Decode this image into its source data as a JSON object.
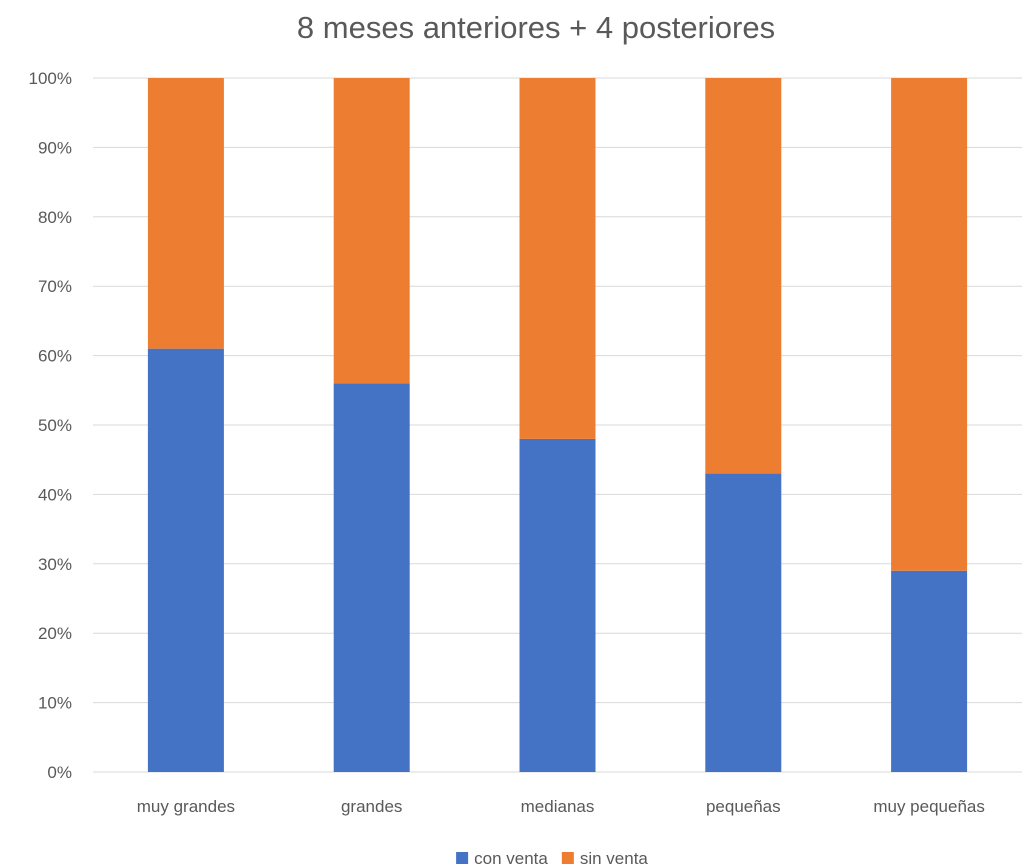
{
  "chart_data": {
    "type": "bar",
    "stacked": true,
    "title": "8 meses anteriores + 4 posteriores",
    "xlabel": "",
    "ylabel": "",
    "categories": [
      "muy grandes",
      "grandes",
      "medianas",
      "pequeñas",
      "muy pequeñas"
    ],
    "series": [
      {
        "name": "con venta",
        "color": "#4472c4",
        "values": [
          61,
          56,
          48,
          43,
          29
        ]
      },
      {
        "name": "sin venta",
        "color": "#ed7d31",
        "values": [
          39,
          44,
          52,
          57,
          71
        ]
      }
    ],
    "ylim": [
      0,
      100
    ],
    "yticks": [
      "0%",
      "10%",
      "20%",
      "30%",
      "40%",
      "50%",
      "60%",
      "70%",
      "80%",
      "90%",
      "100%"
    ],
    "grid": true,
    "legend_position": "bottom"
  }
}
